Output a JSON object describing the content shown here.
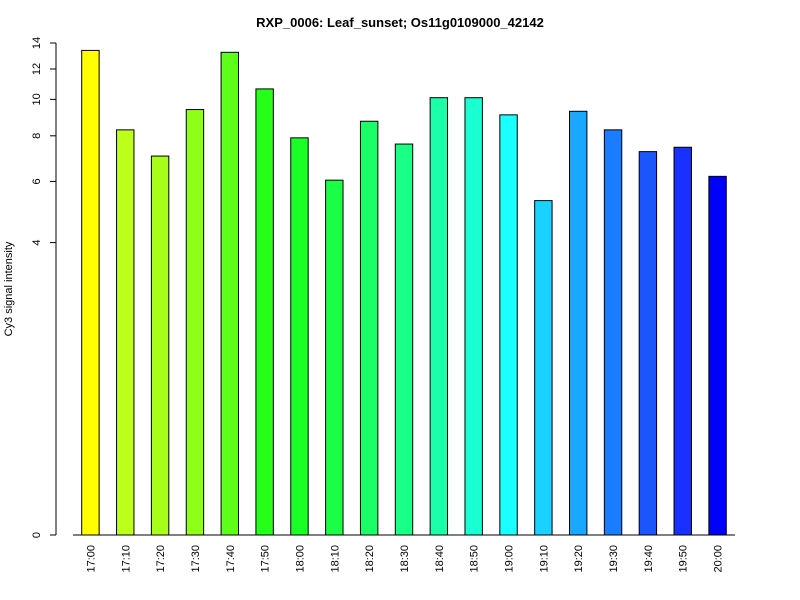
{
  "chart_data": {
    "type": "bar",
    "title": "RXP_0006: Leaf_sunset; Os11g0109000_42142",
    "xlabel": "",
    "ylabel": "Cy3 signal intensity",
    "categories": [
      "17:00",
      "17:10",
      "17:20",
      "17:30",
      "17:40",
      "17:50",
      "18:00",
      "18:10",
      "18:20",
      "18:30",
      "18:40",
      "18:50",
      "19:00",
      "19:10",
      "19:20",
      "19:30",
      "19:40",
      "19:50",
      "20:00"
    ],
    "values": [
      13.4,
      8.3,
      7.05,
      9.4,
      13.25,
      10.65,
      7.9,
      6.05,
      8.75,
      7.6,
      10.1,
      10.1,
      9.1,
      5.3,
      9.3,
      8.3,
      7.25,
      7.45,
      6.2
    ],
    "colors": [
      "#ffff00",
      "#bbff1a",
      "#a6ff1a",
      "#8fff1a",
      "#5dff1a",
      "#26ff1a",
      "#1aff26",
      "#1aff45",
      "#1aff67",
      "#1aff85",
      "#1affa8",
      "#1affd2",
      "#1affff",
      "#1ad2ff",
      "#1aa8ff",
      "#1a7dff",
      "#1a55ff",
      "#1a30ff",
      "#0000ff"
    ],
    "y_ticks": [
      0,
      4,
      6,
      8,
      10,
      12,
      14
    ],
    "ylim": [
      0,
      14
    ],
    "y_scale": "log(y+1)",
    "grid": false,
    "legend": "none"
  }
}
